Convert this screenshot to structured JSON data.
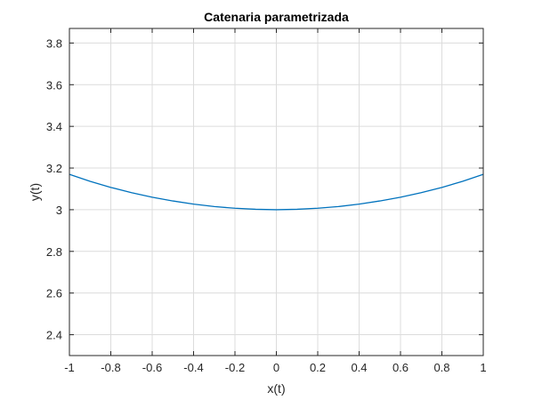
{
  "chart_data": {
    "type": "line",
    "title": "Catenaria parametrizada",
    "xlabel": "x(t)",
    "ylabel": "y(t)",
    "xlim": [
      -1,
      1
    ],
    "ylim": [
      2.3,
      3.87
    ],
    "grid": true,
    "x_ticks": [
      -1,
      -0.8,
      -0.6,
      -0.4,
      -0.2,
      0,
      0.2,
      0.4,
      0.6,
      0.8,
      1
    ],
    "x_tick_labels": [
      "-1",
      "-0.8",
      "-0.6",
      "-0.4",
      "-0.2",
      "0",
      "0.2",
      "0.4",
      "0.6",
      "0.8",
      "1"
    ],
    "y_ticks": [
      2.4,
      2.6,
      2.8,
      3,
      3.2,
      3.4,
      3.6,
      3.8
    ],
    "y_tick_labels": [
      "2.4",
      "2.6",
      "2.8",
      "3",
      "3.2",
      "3.4",
      "3.6",
      "3.8"
    ],
    "series": [
      {
        "color": "#0072bd",
        "x": [
          -1,
          -0.9,
          -0.8,
          -0.7,
          -0.6,
          -0.5,
          -0.4,
          -0.3,
          -0.2,
          -0.1,
          0,
          0.1,
          0.2,
          0.3,
          0.4,
          0.5,
          0.6,
          0.7,
          0.8,
          0.9,
          1
        ],
        "y": [
          3.17,
          3.136,
          3.107,
          3.082,
          3.06,
          3.042,
          3.027,
          3.015,
          3.007,
          3.002,
          3.0,
          3.002,
          3.007,
          3.015,
          3.027,
          3.042,
          3.06,
          3.082,
          3.107,
          3.136,
          3.17
        ]
      }
    ]
  }
}
